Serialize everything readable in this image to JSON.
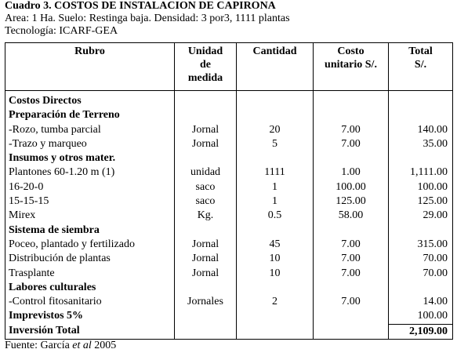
{
  "title": "Cuadro 3. COSTOS DE INSTALACION DE CAPIRONA",
  "subtitle_lines": [
    "Area: 1 Ha. Suelo: Restinga baja. Densidad: 3 por3, 1111 plantas",
    "Tecnología: ICARF-GEA"
  ],
  "headers": [
    "Rubro",
    "Unidad de medida",
    "Cantidad",
    "Costo unitario S/.",
    "Total S/."
  ],
  "header_lines": {
    "unidad": [
      "Unidad",
      "de",
      "medida"
    ],
    "costo": [
      "Costo",
      "unitario S/."
    ],
    "total": [
      "Total",
      "S/."
    ]
  },
  "rows": [
    {
      "rubro": "Costos Directos",
      "bold": true,
      "unidad": "",
      "cantidad": "",
      "costo": "",
      "total": ""
    },
    {
      "rubro": "Preparación de Terreno",
      "bold": true,
      "unidad": "",
      "cantidad": "",
      "costo": "",
      "total": ""
    },
    {
      "rubro": "-Rozo, tumba parcial",
      "bold": false,
      "unidad": "Jornal",
      "cantidad": "20",
      "costo": "7.00",
      "total": "140.00"
    },
    {
      "rubro": "-Trazo y marqueo",
      "bold": false,
      "unidad": "Jornal",
      "cantidad": "5",
      "costo": "7.00",
      "total": "35.00"
    },
    {
      "rubro": "Insumos y otros mater.",
      "bold": true,
      "unidad": "",
      "cantidad": "",
      "costo": "",
      "total": ""
    },
    {
      "rubro": "Plantones 60-1.20 m (1)",
      "bold": false,
      "unidad": "unidad",
      "cantidad": "1111",
      "costo": "1.00",
      "total": "1,111.00"
    },
    {
      "rubro": "16-20-0",
      "bold": false,
      "unidad": "saco",
      "cantidad": "1",
      "costo": "100.00",
      "total": "100.00"
    },
    {
      "rubro": "15-15-15",
      "bold": false,
      "unidad": "saco",
      "cantidad": "1",
      "costo": "125.00",
      "total": "125.00"
    },
    {
      "rubro": "Mirex",
      "bold": false,
      "unidad": "Kg.",
      "cantidad": "0.5",
      "costo": "58.00",
      "total": "29.00"
    },
    {
      "rubro": "Sistema de siembra",
      "bold": true,
      "unidad": "",
      "cantidad": "",
      "costo": "",
      "total": ""
    },
    {
      "rubro": "Poceo, plantado y fertilizado",
      "bold": false,
      "unidad": "Jornal",
      "cantidad": "45",
      "costo": "7.00",
      "total": "315.00"
    },
    {
      "rubro": "Distribución de plantas",
      "bold": false,
      "unidad": "Jornal",
      "cantidad": "10",
      "costo": "7.00",
      "total": "70.00"
    },
    {
      "rubro": "Trasplante",
      "bold": false,
      "unidad": "Jornal",
      "cantidad": "10",
      "costo": "7.00",
      "total": "70.00"
    },
    {
      "rubro": "Labores culturales",
      "bold": true,
      "unidad": "",
      "cantidad": "",
      "costo": "",
      "total": ""
    },
    {
      "rubro": " -Control fitosanitario",
      "bold": false,
      "unidad": "Jornales",
      "cantidad": "2",
      "costo": "7.00",
      "total": "14.00"
    },
    {
      "rubro": "Imprevistos 5%",
      "bold": true,
      "unidad": "",
      "cantidad": "",
      "costo": "",
      "total": "100.00"
    },
    {
      "rubro": "Inversión Total",
      "bold": true,
      "unidad": "",
      "cantidad": "",
      "costo": "",
      "total": "2,109.00",
      "total_bold": true
    }
  ],
  "footer": {
    "prefix": "Fuente: García ",
    "italic": "et al",
    "suffix": " 2005"
  }
}
